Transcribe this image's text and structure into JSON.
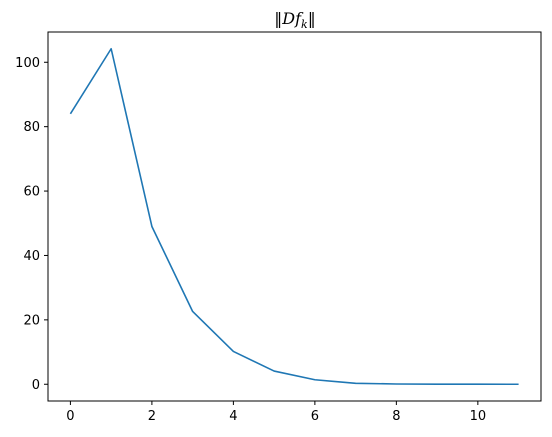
{
  "chart_data": {
    "type": "line",
    "title": "‖Df_k‖",
    "xlabel": "",
    "ylabel": "",
    "x": [
      0,
      1,
      2,
      3,
      4,
      5,
      6,
      7,
      8,
      9,
      10,
      11
    ],
    "series": [
      {
        "values": [
          84.0,
          104.2,
          49.0,
          22.6,
          10.2,
          4.1,
          1.4,
          0.3,
          0.08,
          0.02,
          0.01,
          0.0
        ],
        "color": "#1f77b4"
      }
    ],
    "xlim": [
      -0.55,
      11.55
    ],
    "ylim": [
      -5.2,
      109.4
    ],
    "xticks": [
      0,
      2,
      4,
      6,
      8,
      10
    ],
    "yticks": [
      0,
      20,
      40,
      60,
      80,
      100
    ],
    "grid": false,
    "legend": "none"
  }
}
